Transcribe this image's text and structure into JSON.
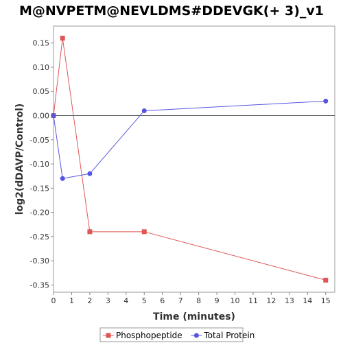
{
  "chart_data": {
    "type": "line",
    "title": "M@NVPETM@NEVLDMS#DDEVGK(+ 3)_v1",
    "xlabel": "Time (minutes)",
    "ylabel": "log2(dDAVP/Control)",
    "xlim": [
      0,
      15.5
    ],
    "ylim": [
      -0.365,
      0.185
    ],
    "xticks": [
      0,
      1,
      2,
      3,
      4,
      5,
      6,
      7,
      8,
      9,
      10,
      11,
      12,
      13,
      14,
      15
    ],
    "yticks": [
      0.15,
      0.1,
      0.05,
      0.0,
      -0.05,
      -0.1,
      -0.15,
      -0.2,
      -0.25,
      -0.3,
      -0.35
    ],
    "ytick_labels": [
      "0.15",
      "0.10",
      "0.05",
      "0.00",
      "-0.05",
      "-0.10",
      "-0.15",
      "-0.20",
      "-0.25",
      "-0.30",
      "-0.35"
    ],
    "zero_line": true,
    "grid": false,
    "legend_position": "bottom",
    "series": [
      {
        "name": "Phosphopeptide",
        "color": "#e05555",
        "marker": "square",
        "x": [
          0,
          0.5,
          2,
          5,
          15
        ],
        "y": [
          0.0,
          0.16,
          -0.24,
          -0.24,
          -0.34
        ]
      },
      {
        "name": "Total Protein",
        "color": "#5555e0",
        "marker": "circle",
        "x": [
          0,
          0.5,
          2,
          5,
          15
        ],
        "y": [
          0.0,
          -0.13,
          -0.12,
          0.01,
          0.03
        ]
      }
    ]
  }
}
